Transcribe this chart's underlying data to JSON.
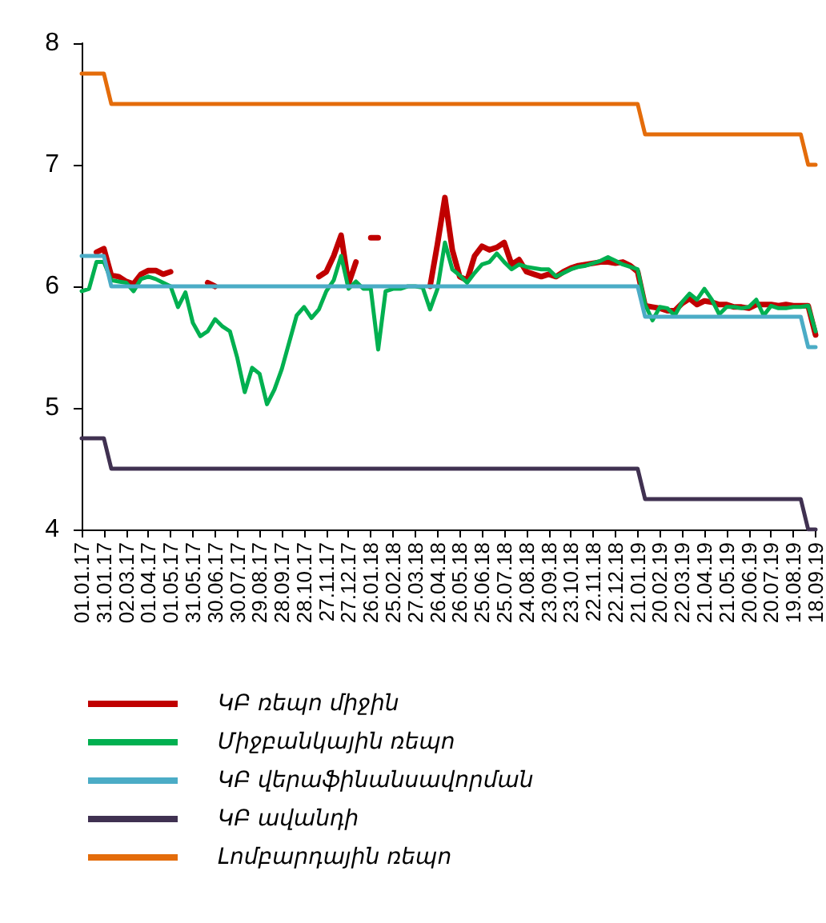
{
  "chart_data": {
    "type": "line",
    "categories": [
      "01.01.17",
      null,
      null,
      "31.01.17",
      null,
      null,
      "02.03.17",
      null,
      null,
      "01.04.17",
      null,
      null,
      "01.05.17",
      null,
      null,
      "31.05.17",
      null,
      null,
      "30.06.17",
      null,
      null,
      "30.07.17",
      null,
      null,
      "29.08.17",
      null,
      null,
      "28.09.17",
      null,
      null,
      "28.10.17",
      null,
      null,
      "27.11.17",
      null,
      null,
      "27.12.17",
      null,
      null,
      "26.01.18",
      null,
      null,
      "25.02.18",
      null,
      null,
      "27.03.18",
      null,
      null,
      "26.04.18",
      null,
      null,
      "26.05.18",
      null,
      null,
      "25.06.18",
      null,
      null,
      "25.07.18",
      null,
      null,
      "24.08.18",
      null,
      null,
      "23.09.18",
      null,
      null,
      "23.10.18",
      null,
      null,
      "22.11.18",
      null,
      null,
      "22.12.18",
      null,
      null,
      "21.01.19",
      null,
      null,
      "20.02.19",
      null,
      null,
      "22.03.19",
      null,
      null,
      "21.04.19",
      null,
      null,
      "21.05.19",
      null,
      null,
      "20.06.19",
      null,
      null,
      "20.07.19",
      null,
      null,
      "19.08.19",
      null,
      null,
      "18.09.19"
    ],
    "series": [
      {
        "name": "ԿԲ ռեպո միջին",
        "color": "#c00000",
        "values": [
          null,
          null,
          6.28,
          6.31,
          6.09,
          6.08,
          6.04,
          6.02,
          6.1,
          6.13,
          6.13,
          6.1,
          6.12,
          null,
          null,
          null,
          null,
          6.03,
          6.0,
          null,
          null,
          null,
          null,
          null,
          null,
          null,
          null,
          null,
          null,
          null,
          null,
          null,
          6.08,
          6.12,
          6.25,
          6.42,
          6.02,
          6.2,
          null,
          6.4,
          6.4,
          null,
          null,
          null,
          null,
          null,
          null,
          6.0,
          6.35,
          6.73,
          6.3,
          6.08,
          6.05,
          6.25,
          6.33,
          6.3,
          6.32,
          6.36,
          6.18,
          6.22,
          6.12,
          6.1,
          6.08,
          6.1,
          6.08,
          6.12,
          6.15,
          6.17,
          6.18,
          6.19,
          6.2,
          6.2,
          6.19,
          6.2,
          6.17,
          6.12,
          5.84,
          5.83,
          5.82,
          5.8,
          5.8,
          5.86,
          5.9,
          5.85,
          5.88,
          5.87,
          5.85,
          5.85,
          5.83,
          5.83,
          5.82,
          5.85,
          5.85,
          5.85,
          5.84,
          5.85,
          5.84,
          5.84,
          5.84,
          5.6
        ]
      },
      {
        "name": "Միջբանկային ռեպո",
        "color": "#00b050",
        "values": [
          5.96,
          5.98,
          6.2,
          6.2,
          6.05,
          6.04,
          6.03,
          5.96,
          6.06,
          6.08,
          6.06,
          6.03,
          6.0,
          5.83,
          5.95,
          5.7,
          5.59,
          5.63,
          5.73,
          5.67,
          5.63,
          5.41,
          5.13,
          5.33,
          5.28,
          5.03,
          5.15,
          5.32,
          5.54,
          5.76,
          5.83,
          5.74,
          5.81,
          5.96,
          6.05,
          6.25,
          5.98,
          6.04,
          5.98,
          5.98,
          5.48,
          5.96,
          5.98,
          5.98,
          6.0,
          6.0,
          5.99,
          5.81,
          5.98,
          6.36,
          6.14,
          6.09,
          6.03,
          6.11,
          6.18,
          6.2,
          6.27,
          6.2,
          6.14,
          6.18,
          6.16,
          6.15,
          6.14,
          6.14,
          6.08,
          6.11,
          6.14,
          6.16,
          6.17,
          6.19,
          6.21,
          6.24,
          6.21,
          6.18,
          6.16,
          6.14,
          5.85,
          5.72,
          5.83,
          5.82,
          5.76,
          5.87,
          5.94,
          5.89,
          5.98,
          5.89,
          5.77,
          5.83,
          5.83,
          5.82,
          5.83,
          5.89,
          5.76,
          5.84,
          5.82,
          5.82,
          5.83,
          5.83,
          5.84,
          5.63
        ]
      },
      {
        "name": "ԿԲ վերաֆինանսավորման",
        "color": "#4bacc6",
        "values": [
          6.25,
          6.25,
          6.25,
          6.25,
          6.0,
          6.0,
          6.0,
          6.0,
          6.0,
          6.0,
          6.0,
          6.0,
          6.0,
          6.0,
          6.0,
          6.0,
          6.0,
          6.0,
          6.0,
          6.0,
          6.0,
          6.0,
          6.0,
          6.0,
          6.0,
          6.0,
          6.0,
          6.0,
          6.0,
          6.0,
          6.0,
          6.0,
          6.0,
          6.0,
          6.0,
          6.0,
          6.0,
          6.0,
          6.0,
          6.0,
          6.0,
          6.0,
          6.0,
          6.0,
          6.0,
          6.0,
          6.0,
          6.0,
          6.0,
          6.0,
          6.0,
          6.0,
          6.0,
          6.0,
          6.0,
          6.0,
          6.0,
          6.0,
          6.0,
          6.0,
          6.0,
          6.0,
          6.0,
          6.0,
          6.0,
          6.0,
          6.0,
          6.0,
          6.0,
          6.0,
          6.0,
          6.0,
          6.0,
          6.0,
          6.0,
          6.0,
          5.75,
          5.75,
          5.75,
          5.75,
          5.75,
          5.75,
          5.75,
          5.75,
          5.75,
          5.75,
          5.75,
          5.75,
          5.75,
          5.75,
          5.75,
          5.75,
          5.75,
          5.75,
          5.75,
          5.75,
          5.75,
          5.75,
          5.5,
          5.5
        ]
      },
      {
        "name": "ԿԲ ավանդի",
        "color": "#403151",
        "values": [
          4.75,
          4.75,
          4.75,
          4.75,
          4.5,
          4.5,
          4.5,
          4.5,
          4.5,
          4.5,
          4.5,
          4.5,
          4.5,
          4.5,
          4.5,
          4.5,
          4.5,
          4.5,
          4.5,
          4.5,
          4.5,
          4.5,
          4.5,
          4.5,
          4.5,
          4.5,
          4.5,
          4.5,
          4.5,
          4.5,
          4.5,
          4.5,
          4.5,
          4.5,
          4.5,
          4.5,
          4.5,
          4.5,
          4.5,
          4.5,
          4.5,
          4.5,
          4.5,
          4.5,
          4.5,
          4.5,
          4.5,
          4.5,
          4.5,
          4.5,
          4.5,
          4.5,
          4.5,
          4.5,
          4.5,
          4.5,
          4.5,
          4.5,
          4.5,
          4.5,
          4.5,
          4.5,
          4.5,
          4.5,
          4.5,
          4.5,
          4.5,
          4.5,
          4.5,
          4.5,
          4.5,
          4.5,
          4.5,
          4.5,
          4.5,
          4.5,
          4.25,
          4.25,
          4.25,
          4.25,
          4.25,
          4.25,
          4.25,
          4.25,
          4.25,
          4.25,
          4.25,
          4.25,
          4.25,
          4.25,
          4.25,
          4.25,
          4.25,
          4.25,
          4.25,
          4.25,
          4.25,
          4.25,
          4.0,
          4.0
        ]
      },
      {
        "name": "Լոմբարդային ռեպո",
        "color": "#e46c0a",
        "values": [
          7.75,
          7.75,
          7.75,
          7.75,
          7.5,
          7.5,
          7.5,
          7.5,
          7.5,
          7.5,
          7.5,
          7.5,
          7.5,
          7.5,
          7.5,
          7.5,
          7.5,
          7.5,
          7.5,
          7.5,
          7.5,
          7.5,
          7.5,
          7.5,
          7.5,
          7.5,
          7.5,
          7.5,
          7.5,
          7.5,
          7.5,
          7.5,
          7.5,
          7.5,
          7.5,
          7.5,
          7.5,
          7.5,
          7.5,
          7.5,
          7.5,
          7.5,
          7.5,
          7.5,
          7.5,
          7.5,
          7.5,
          7.5,
          7.5,
          7.5,
          7.5,
          7.5,
          7.5,
          7.5,
          7.5,
          7.5,
          7.5,
          7.5,
          7.5,
          7.5,
          7.5,
          7.5,
          7.5,
          7.5,
          7.5,
          7.5,
          7.5,
          7.5,
          7.5,
          7.5,
          7.5,
          7.5,
          7.5,
          7.5,
          7.5,
          7.5,
          7.25,
          7.25,
          7.25,
          7.25,
          7.25,
          7.25,
          7.25,
          7.25,
          7.25,
          7.25,
          7.25,
          7.25,
          7.25,
          7.25,
          7.25,
          7.25,
          7.25,
          7.25,
          7.25,
          7.25,
          7.25,
          7.25,
          7.0,
          7.0
        ]
      }
    ],
    "ylim": [
      4,
      8
    ],
    "yticks": [
      4,
      5,
      6,
      7,
      8
    ],
    "grid": false,
    "legend": "bottom",
    "marker": "none",
    "line_style": "solid"
  }
}
